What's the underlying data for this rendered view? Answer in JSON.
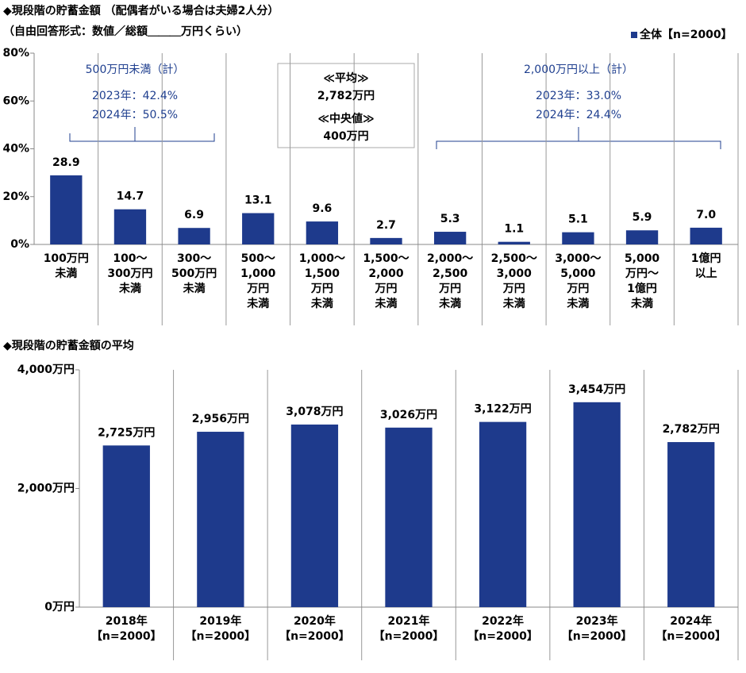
{
  "chart_data": [
    {
      "type": "bar",
      "title": "◆現段階の貯蓄金額 （配偶者がいる場合は夫婦2人分）",
      "subtitle": "（自由回答形式：数値／総額＿＿＿万円くらい）",
      "categories": [
        "100万円\n未満",
        "100～\n300万円\n未満",
        "300～\n500万円\n未満",
        "500～\n1,000\n万円\n未満",
        "1,000～\n1,500\n万円\n未満",
        "1,500～\n2,000\n万円\n未満",
        "2,000～\n2,500\n万円\n未満",
        "2,500～\n3,000\n万円\n未満",
        "3,000～\n5,000\n万円\n未満",
        "5,000\n万円～\n1億円\n未満",
        "1億円\n以上"
      ],
      "series": [
        {
          "name": "全体【n=2000】",
          "color": "#1e3a8c",
          "values": [
            28.9,
            14.7,
            6.9,
            13.1,
            9.6,
            2.7,
            5.3,
            1.1,
            5.1,
            5.9,
            7.0
          ],
          "value_labels": [
            "28.9",
            "14.7",
            "6.9",
            "13.1",
            "9.6",
            "2.7",
            "5.3",
            "1.1",
            "5.1",
            "5.9",
            "7.0"
          ]
        }
      ],
      "ylim": [
        0,
        80
      ],
      "yticks": [
        {
          "value": 0,
          "label": "0%"
        },
        {
          "value": 20,
          "label": "20%"
        },
        {
          "value": 40,
          "label": "40%"
        },
        {
          "value": 60,
          "label": "60%"
        },
        {
          "value": 80,
          "label": "80%"
        }
      ],
      "annotations": [
        [
          "500万円未満（計）",
          "2023年：42.4%",
          "2024年：50.5%"
        ],
        [
          "≪平均≫",
          "2,782万円",
          "≪中央値≫",
          "400万円"
        ],
        [
          "2,000万円以上（計）",
          "2023年：33.0%",
          "2024年：24.4%"
        ]
      ]
    },
    {
      "type": "bar",
      "title": "◆現段階の貯蓄金額の平均",
      "categories": [
        "2018年\n【n=2000】",
        "2019年\n【n=2000】",
        "2020年\n【n=2000】",
        "2021年\n【n=2000】",
        "2022年\n【n=2000】",
        "2023年\n【n=2000】",
        "2024年\n【n=2000】"
      ],
      "values": [
        2725,
        2956,
        3078,
        3026,
        3122,
        3454,
        2782
      ],
      "value_labels": [
        "2,725万円",
        "2,956万円",
        "3,078万円",
        "3,026万円",
        "3,122万円",
        "3,454万円",
        "2,782万円"
      ],
      "color": "#1e3a8c",
      "ylim": [
        0,
        4000
      ],
      "yticks": [
        {
          "value": 0,
          "label": "0万円"
        },
        {
          "value": 2000,
          "label": "2,000万円"
        },
        {
          "value": 4000,
          "label": "4,000万円"
        }
      ]
    }
  ]
}
